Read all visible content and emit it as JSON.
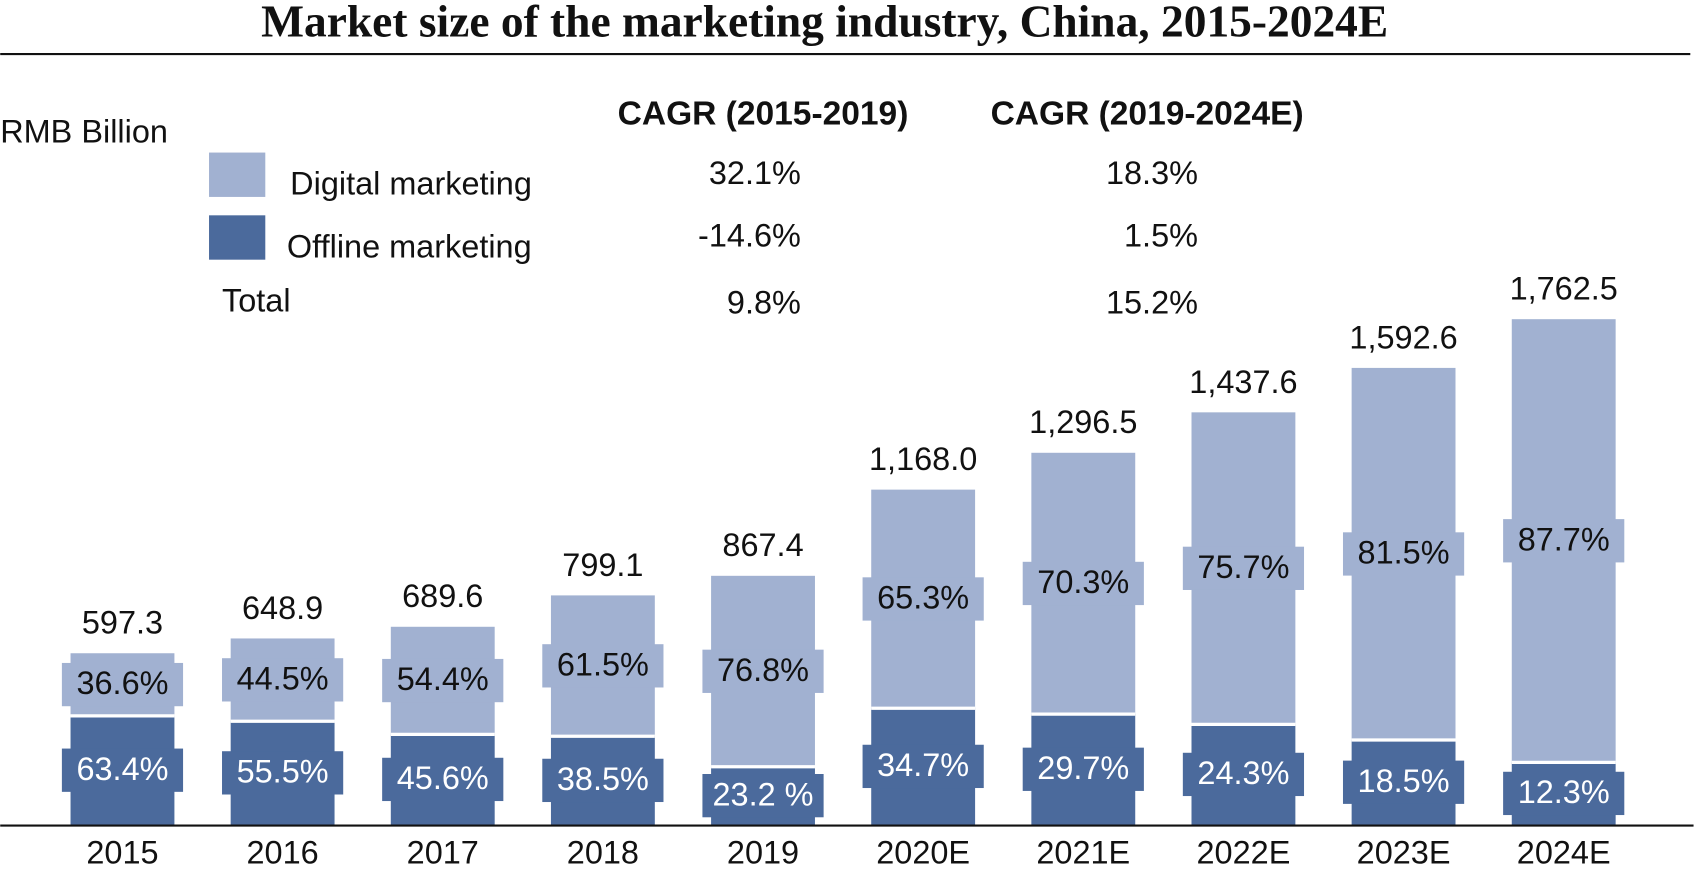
{
  "chart_data": {
    "type": "bar",
    "stacked": true,
    "title": "Market size of the marketing industry, China, 2015-2024E",
    "unit_label": "RMB Billion",
    "categories": [
      "2015",
      "2016",
      "2017",
      "2018",
      "2019",
      "2020E",
      "2021E",
      "2022E",
      "2023E",
      "2024E"
    ],
    "series": [
      {
        "name": "Digital marketing",
        "color": "#a1b1d1",
        "values": [
          36.6,
          44.5,
          54.4,
          61.5,
          76.8,
          65.3,
          70.3,
          75.7,
          81.5,
          87.7
        ],
        "value_labels": [
          "36.6%",
          "44.5%",
          "54.4%",
          "61.5%",
          "76.8%",
          "65.3%",
          "70.3%",
          "75.7%",
          "81.5%",
          "87.7%"
        ]
      },
      {
        "name": "Offline marketing",
        "color": "#4b6a9c",
        "values": [
          63.4,
          55.5,
          45.6,
          38.5,
          23.2,
          34.7,
          29.7,
          24.3,
          18.5,
          12.3
        ],
        "value_labels": [
          "63.4%",
          "55.5%",
          "45.6%",
          "38.5%",
          "23.2 %",
          "34.7%",
          "29.7%",
          "24.3%",
          "18.5%",
          "12.3%"
        ]
      }
    ],
    "totals": {
      "name": "Total",
      "values": [
        597.3,
        648.9,
        689.6,
        799.1,
        867.4,
        1168.0,
        1296.5,
        1437.6,
        1592.6,
        1762.5
      ],
      "value_labels": [
        "597.3",
        "648.9",
        "689.6",
        "799.1",
        "867.4",
        "1,168.0",
        "1,296.5",
        "1,437.6",
        "1,592.6",
        "1,762.5"
      ]
    },
    "cagr": {
      "headers": [
        "CAGR (2015-2019)",
        "CAGR (2019-2024E)"
      ],
      "rows": [
        [
          "32.1%",
          "18.3%"
        ],
        [
          "-14.6%",
          "1.5%"
        ],
        [
          "9.8%",
          "15.2%"
        ]
      ]
    }
  }
}
